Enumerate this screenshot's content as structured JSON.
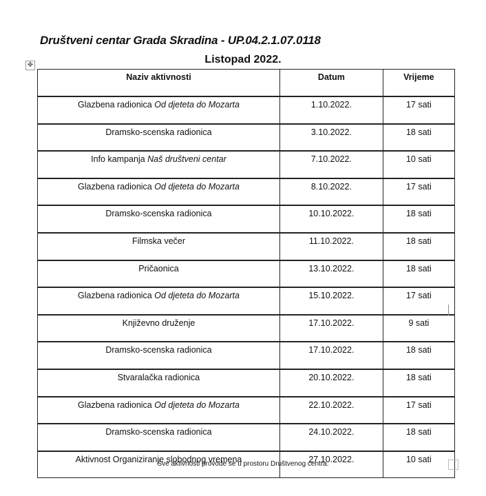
{
  "title": "Društveni centar Grada Skradina - UP.04.2.1.07.0118",
  "subtitle": "Listopad 2022.",
  "table": {
    "headers": [
      "Naziv aktivnosti",
      "Datum",
      "Vrijeme"
    ],
    "rows": [
      {
        "name": "Glazbena radionica ",
        "name_italic": "Od djeteta do Mozarta",
        "date": "1.10.2022.",
        "time": "17 sati"
      },
      {
        "name": "Dramsko-scenska radionica",
        "name_italic": "",
        "date": "3.10.2022.",
        "time": "18 sati"
      },
      {
        "name": "Info kampanja ",
        "name_italic": "Naš društveni centar",
        "date": "7.10.2022.",
        "time": "10 sati"
      },
      {
        "name": "Glazbena radionica ",
        "name_italic": "Od djeteta do Mozarta",
        "date": "8.10.2022.",
        "time": "17 sati"
      },
      {
        "name": "Dramsko-scenska radionica",
        "name_italic": "",
        "date": "10.10.2022.",
        "time": "18 sati"
      },
      {
        "name": "Filmska večer",
        "name_italic": "",
        "date": "11.10.2022.",
        "time": "18 sati"
      },
      {
        "name": "Pričaonica",
        "name_italic": "",
        "date": "13.10.2022.",
        "time": "18 sati"
      },
      {
        "name": "Glazbena radionica ",
        "name_italic": "Od djeteta do Mozarta",
        "date": "15.10.2022.",
        "time": "17 sati"
      },
      {
        "name": "Književno druženje",
        "name_italic": "",
        "date": "17.10.2022.",
        "time": "9 sati"
      },
      {
        "name": "Dramsko-scenska radionica",
        "name_italic": "",
        "date": "17.10.2022.",
        "time": "18 sati"
      },
      {
        "name": "Stvaralačka radionica",
        "name_italic": "",
        "date": "20.10.2022.",
        "time": "18 sati"
      },
      {
        "name": "Glazbena radionica ",
        "name_italic": "Od djeteta do Mozarta",
        "date": "22.10.2022.",
        "time": "17 sati"
      },
      {
        "name": "Dramsko-scenska radionica",
        "name_italic": "",
        "date": "24.10.2022.",
        "time": "18 sati"
      },
      {
        "name": "Aktivnost Organiziranje slobodnog vremena",
        "name_italic": "",
        "date": "27.10.2022.",
        "time": "10 sati"
      }
    ]
  },
  "footer": "Sve aktivnosti provode se u prostoru Društvenog centra."
}
